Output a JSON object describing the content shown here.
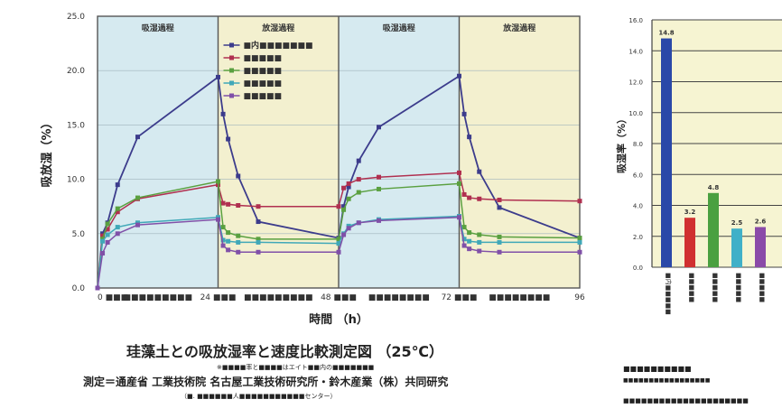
{
  "chart_data": [
    {
      "type": "line",
      "ylabel": "吸放湿（%）",
      "xlabel": "時間 （h）",
      "ylim": [
        0,
        25
      ],
      "yticks": [
        "0.0",
        "5.0",
        "10.0",
        "15.0",
        "20.0",
        "25.0"
      ],
      "xlim": [
        0,
        96
      ],
      "xticks": [
        {
          "x": 0,
          "label": "0 ■■■"
        },
        {
          "x": 12,
          "label": "■■■■■■■■■"
        },
        {
          "x": 24,
          "label": "24 ■■■"
        },
        {
          "x": 36,
          "label": "■■■■■■■■■"
        },
        {
          "x": 48,
          "label": "48 ■■■"
        },
        {
          "x": 60,
          "label": "■■■■■■■■"
        },
        {
          "x": 72,
          "label": "72 ■■■"
        },
        {
          "x": 84,
          "label": "■■■■■■■■"
        },
        {
          "x": 96,
          "label": "96"
        }
      ],
      "phases": [
        {
          "label": "吸湿過程",
          "from": 0,
          "to": 24,
          "color": "#d6eaf0"
        },
        {
          "label": "放湿過程",
          "from": 24,
          "to": 48,
          "color": "#f3f0cf"
        },
        {
          "label": "吸湿過程",
          "from": 48,
          "to": 72,
          "color": "#d6eaf0"
        },
        {
          "label": "放湿過程",
          "from": 72,
          "to": 96,
          "color": "#f3f0cf"
        }
      ],
      "legend_position": "top-left of second panel",
      "series": [
        {
          "name": "■内■■■■■■■",
          "color": "#3c3c8c",
          "x": [
            0,
            1,
            2,
            4,
            8,
            24,
            25,
            26,
            28,
            32,
            48,
            49,
            50,
            52,
            56,
            72,
            73,
            74,
            76,
            80,
            96
          ],
          "y": [
            0,
            5.0,
            6.0,
            9.5,
            13.9,
            19.4,
            16.0,
            13.7,
            10.3,
            6.1,
            4.6,
            7.5,
            9.3,
            11.7,
            14.8,
            19.5,
            16.0,
            13.9,
            10.7,
            7.4,
            4.6
          ]
        },
        {
          "name": "■■■■■",
          "color": "#b03050",
          "x": [
            0,
            1,
            2,
            4,
            8,
            24,
            25,
            26,
            28,
            32,
            48,
            49,
            50,
            52,
            56,
            72,
            73,
            74,
            76,
            80,
            96
          ],
          "y": [
            0,
            4.8,
            5.4,
            7.0,
            8.2,
            9.5,
            7.8,
            7.7,
            7.6,
            7.5,
            7.5,
            9.2,
            9.6,
            10.0,
            10.2,
            10.6,
            8.6,
            8.3,
            8.2,
            8.1,
            8.0
          ]
        },
        {
          "name": "■■■■■",
          "color": "#5aa040",
          "x": [
            0,
            1,
            2,
            4,
            8,
            24,
            25,
            26,
            28,
            32,
            48,
            49,
            50,
            52,
            56,
            72,
            73,
            74,
            76,
            80,
            96
          ],
          "y": [
            0,
            4.5,
            5.9,
            7.3,
            8.3,
            9.8,
            5.6,
            5.1,
            4.8,
            4.5,
            4.5,
            7.2,
            8.2,
            8.8,
            9.1,
            9.6,
            5.6,
            5.1,
            4.9,
            4.7,
            4.6
          ]
        },
        {
          "name": "■■■■■",
          "color": "#40a8b8",
          "x": [
            0,
            1,
            2,
            4,
            8,
            24,
            25,
            26,
            28,
            32,
            48,
            49,
            50,
            52,
            56,
            72,
            73,
            74,
            76,
            80,
            96
          ],
          "y": [
            0,
            4.3,
            4.9,
            5.6,
            6.0,
            6.5,
            4.4,
            4.3,
            4.2,
            4.2,
            4.1,
            5.0,
            5.7,
            6.0,
            6.3,
            6.6,
            4.5,
            4.3,
            4.2,
            4.2,
            4.2
          ]
        },
        {
          "name": "■■■■■",
          "color": "#8050a8",
          "x": [
            0,
            1,
            2,
            4,
            8,
            24,
            25,
            26,
            28,
            32,
            48,
            49,
            50,
            52,
            56,
            72,
            73,
            74,
            76,
            80,
            96
          ],
          "y": [
            0,
            3.2,
            4.2,
            5.0,
            5.8,
            6.3,
            3.9,
            3.5,
            3.3,
            3.3,
            3.3,
            4.9,
            5.5,
            6.0,
            6.2,
            6.5,
            3.9,
            3.6,
            3.4,
            3.3,
            3.3
          ]
        }
      ]
    },
    {
      "type": "bar",
      "ylabel": "吸湿率（%）",
      "ylim": [
        0,
        16
      ],
      "yticks": [
        "0.0",
        "2.0",
        "4.0",
        "6.0",
        "8.0",
        "10.0",
        "12.0",
        "14.0",
        "16.0"
      ],
      "categories": [
        "■内■■■■■",
        "■■■■■",
        "■■■■■",
        "■■■■■",
        "■■■■■"
      ],
      "values": [
        14.8,
        3.2,
        4.8,
        2.5,
        2.6
      ],
      "value_labels": [
        "14.8",
        "3.2",
        "4.8",
        "2.5",
        "2.6"
      ],
      "colors": [
        "#2a48a8",
        "#d03030",
        "#4aa040",
        "#40b0c8",
        "#8a4aa8"
      ]
    }
  ],
  "captions": {
    "title": "珪藻土との吸放湿率と速度比較測定図 （25℃）",
    "note": "※■■■■率と■■■■はエイト■■内の■■■■■■■",
    "main": "測定＝通産省 工業技術院 名古屋工業技術研究所・鈴木産業（株）共同研究",
    "sub": "（■. ■■■■■■人■■■■■■■■■■■センター）",
    "bar_title": "■■■■■■■■■■",
    "bar_sub": "■■■■■■■■■■■■■■■■■",
    "credit": "■■■■■■■■■■■■■■■■■■■■■"
  }
}
